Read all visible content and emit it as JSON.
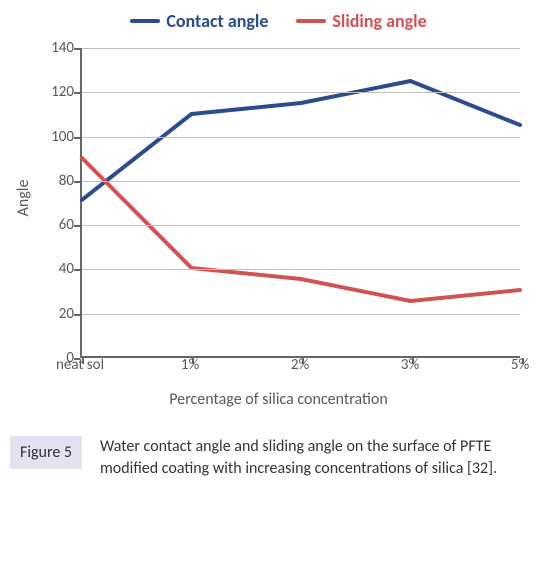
{
  "chart": {
    "type": "line",
    "legend": [
      {
        "label": "Contact angle",
        "color": "#2a4b8d"
      },
      {
        "label": "Sliding angle",
        "color": "#d05352"
      }
    ],
    "legend_fontsize": 18,
    "legend_fontweight": "bold",
    "categories": [
      "neat sol",
      "1%",
      "2%",
      "3%",
      "5%"
    ],
    "series": [
      {
        "name": "Contact angle",
        "color": "#2a4b8d",
        "line_width": 4,
        "values": [
          71,
          110,
          115,
          125,
          105
        ]
      },
      {
        "name": "Sliding angle",
        "color": "#d05352",
        "line_width": 4,
        "values": [
          90,
          40,
          35,
          25,
          30
        ]
      }
    ],
    "ylabel": "Angle",
    "xlabel": "Percentage of silica concentration",
    "label_fontsize": 16,
    "tick_fontsize": 15,
    "ylim": [
      0,
      140
    ],
    "ytick_step": 20,
    "grid_color": "#bfbfbf",
    "axis_color": "#666666",
    "background_color": "#ffffff"
  },
  "caption": {
    "badge": "Figure 5",
    "text": "Water contact angle and sliding angle on the surface of PFTE modified coating with increasing concentrations of silica [32].",
    "badge_bg": "#e6e1f0",
    "badge_color": "#333333",
    "text_color": "#333333",
    "fontsize": 16
  }
}
